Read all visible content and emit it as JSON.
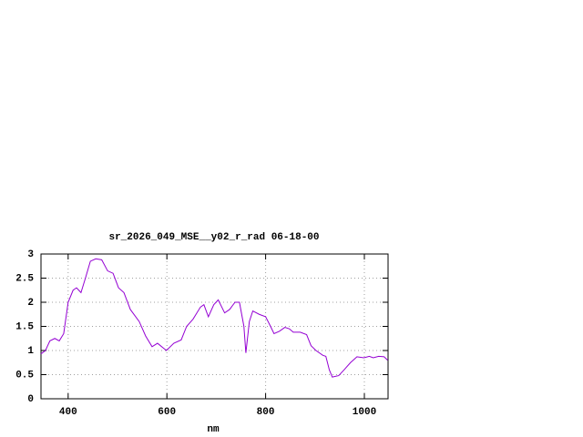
{
  "chart_data": {
    "type": "line",
    "title": "sr_2026_049_MSE__y02_r_rad 06-18-00",
    "x_label": "nm",
    "xlim": [
      345,
      1048
    ],
    "xticks": [
      400,
      600,
      800,
      1000
    ],
    "ylim": [
      0,
      3
    ],
    "yticks": [
      0,
      0.5,
      1,
      1.5,
      2,
      2.5,
      3
    ],
    "grid": true,
    "series": [
      {
        "color": "#9400d3",
        "x": [
          345,
          354,
          363,
          373,
          382,
          391,
          400,
          410,
          417,
          426,
          435,
          445,
          456,
          468,
          480,
          491,
          502,
          513,
          526,
          544,
          557,
          570,
          581,
          599,
          614,
          629,
          640,
          653,
          668,
          675,
          684,
          695,
          704,
          717,
          727,
          738,
          747,
          756,
          760,
          767,
          774,
          787,
          800,
          810,
          817,
          828,
          839,
          848,
          856,
          870,
          883,
          892,
          902,
          916,
          922,
          929,
          935,
          948,
          959,
          972,
          985,
          999,
          1010,
          1018,
          1029,
          1040,
          1047
        ],
        "values": [
          0.93,
          1.0,
          1.2,
          1.25,
          1.2,
          1.35,
          2.0,
          2.25,
          2.3,
          2.2,
          2.5,
          2.85,
          2.9,
          2.88,
          2.65,
          2.6,
          2.3,
          2.2,
          1.85,
          1.6,
          1.3,
          1.08,
          1.15,
          1.0,
          1.15,
          1.22,
          1.5,
          1.65,
          1.9,
          1.95,
          1.7,
          1.95,
          2.05,
          1.78,
          1.85,
          2.0,
          2.0,
          1.5,
          0.95,
          1.6,
          1.82,
          1.75,
          1.7,
          1.5,
          1.35,
          1.4,
          1.48,
          1.45,
          1.38,
          1.38,
          1.33,
          1.1,
          1.0,
          0.9,
          0.88,
          0.6,
          0.45,
          0.48,
          0.6,
          0.75,
          0.87,
          0.85,
          0.88,
          0.85,
          0.88,
          0.87,
          0.8
        ]
      }
    ]
  }
}
